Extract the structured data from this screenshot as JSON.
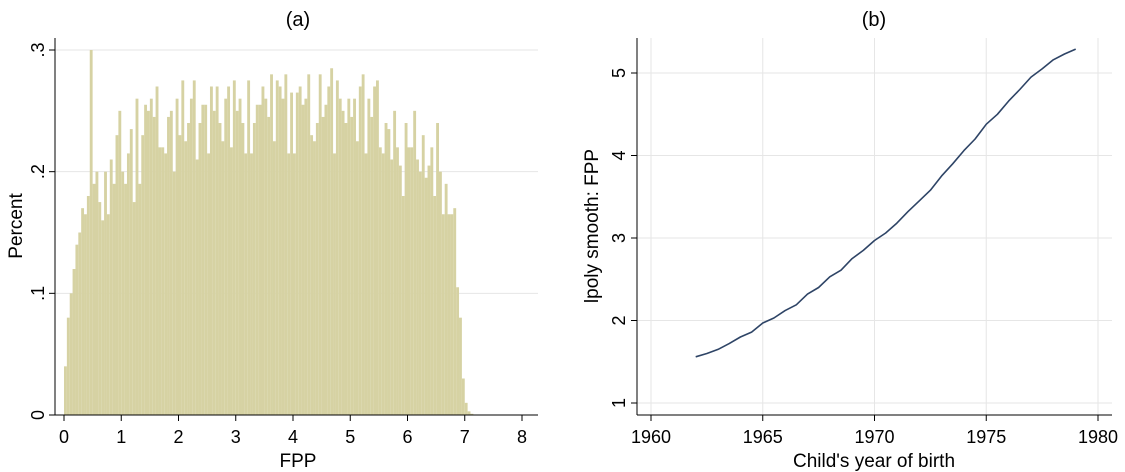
{
  "chart_data": [
    {
      "type": "bar",
      "panel_label": "(a)",
      "xlabel": "FPP",
      "ylabel": "Percent",
      "xlim": [
        0,
        8
      ],
      "ylim": [
        0,
        0.3
      ],
      "xticks": [
        0,
        1,
        2,
        3,
        4,
        5,
        6,
        7,
        8
      ],
      "xtick_labels": [
        "0",
        "1",
        "2",
        "3",
        "4",
        "5",
        "6",
        "7",
        "8"
      ],
      "yticks": [
        0,
        0.1,
        0.2,
        0.3
      ],
      "ytick_labels": [
        "0",
        ".1",
        ".2",
        ".3"
      ],
      "grid": "horizontal",
      "bar_color": "#d6d2a3",
      "bin_width": 0.05,
      "series": [
        {
          "x": [
            0.05,
            0.1,
            0.15,
            0.2,
            0.25,
            0.3,
            0.35,
            0.4,
            0.45,
            0.5,
            0.55,
            0.6,
            0.65,
            0.7,
            0.75,
            0.8,
            0.85,
            0.9,
            0.95,
            1.0,
            1.05,
            1.1,
            1.15,
            1.2,
            1.25,
            1.3,
            1.35,
            1.4,
            1.45,
            1.5,
            1.55,
            1.6,
            1.65,
            1.7,
            1.75,
            1.8,
            1.85,
            1.9,
            1.95,
            2.0,
            2.05,
            2.1,
            2.15,
            2.2,
            2.25,
            2.3,
            2.35,
            2.4,
            2.45,
            2.5,
            2.55,
            2.6,
            2.65,
            2.7,
            2.75,
            2.8,
            2.85,
            2.9,
            2.95,
            3.0,
            3.05,
            3.1,
            3.15,
            3.2,
            3.25,
            3.3,
            3.35,
            3.4,
            3.45,
            3.5,
            3.55,
            3.6,
            3.65,
            3.7,
            3.75,
            3.8,
            3.85,
            3.9,
            3.95,
            4.0,
            4.05,
            4.1,
            4.15,
            4.2,
            4.25,
            4.3,
            4.35,
            4.4,
            4.45,
            4.5,
            4.55,
            4.6,
            4.65,
            4.7,
            4.75,
            4.8,
            4.85,
            4.9,
            4.95,
            5.0,
            5.05,
            5.1,
            5.15,
            5.2,
            5.25,
            5.3,
            5.35,
            5.4,
            5.45,
            5.5,
            5.55,
            5.6,
            5.65,
            5.7,
            5.75,
            5.8,
            5.85,
            5.9,
            5.95,
            6.0,
            6.05,
            6.1,
            6.15,
            6.2,
            6.25,
            6.3,
            6.35,
            6.4,
            6.45,
            6.5,
            6.55,
            6.6,
            6.65,
            6.7,
            6.75,
            6.8,
            6.85,
            6.9,
            6.95,
            7.0,
            7.05,
            7.1,
            7.15,
            7.2
          ],
          "values": [
            0.04,
            0.08,
            0.1,
            0.12,
            0.14,
            0.15,
            0.17,
            0.165,
            0.18,
            0.3,
            0.19,
            0.2,
            0.175,
            0.16,
            0.2,
            0.165,
            0.21,
            0.19,
            0.23,
            0.25,
            0.2,
            0.19,
            0.215,
            0.235,
            0.175,
            0.26,
            0.19,
            0.23,
            0.255,
            0.25,
            0.26,
            0.245,
            0.27,
            0.22,
            0.22,
            0.215,
            0.245,
            0.25,
            0.2,
            0.26,
            0.23,
            0.275,
            0.225,
            0.24,
            0.26,
            0.275,
            0.21,
            0.24,
            0.255,
            0.255,
            0.215,
            0.27,
            0.25,
            0.27,
            0.24,
            0.225,
            0.26,
            0.27,
            0.22,
            0.275,
            0.25,
            0.26,
            0.24,
            0.215,
            0.275,
            0.215,
            0.24,
            0.255,
            0.255,
            0.27,
            0.26,
            0.245,
            0.28,
            0.225,
            0.275,
            0.27,
            0.26,
            0.28,
            0.215,
            0.265,
            0.215,
            0.265,
            0.27,
            0.255,
            0.26,
            0.28,
            0.23,
            0.225,
            0.24,
            0.28,
            0.245,
            0.255,
            0.27,
            0.285,
            0.215,
            0.275,
            0.26,
            0.25,
            0.24,
            0.26,
            0.245,
            0.26,
            0.225,
            0.27,
            0.28,
            0.215,
            0.26,
            0.245,
            0.27,
            0.275,
            0.22,
            0.215,
            0.24,
            0.235,
            0.21,
            0.25,
            0.22,
            0.205,
            0.18,
            0.24,
            0.22,
            0.22,
            0.25,
            0.21,
            0.2,
            0.23,
            0.195,
            0.205,
            0.22,
            0.18,
            0.24,
            0.2,
            0.165,
            0.19,
            0.165,
            0.165,
            0.17,
            0.105,
            0.08,
            0.03,
            0.01,
            0.003,
            0.001,
            0.0
          ]
        }
      ]
    },
    {
      "type": "line",
      "panel_label": "(b)",
      "xlabel": "Child's year of birth",
      "ylabel": "lpoly smooth: FPP",
      "xlim": [
        1959,
        1981
      ],
      "ylim": [
        0.8,
        5.45
      ],
      "xticks": [
        1960,
        1965,
        1970,
        1975,
        1980
      ],
      "xtick_labels": [
        "1960",
        "1965",
        "1970",
        "1975",
        "1980"
      ],
      "yticks": [
        1,
        2,
        3,
        4,
        5
      ],
      "ytick_labels": [
        "1",
        "2",
        "3",
        "4",
        "5"
      ],
      "grid": "both",
      "line_color": "#2e4466",
      "series": [
        {
          "x": [
            1962,
            1962.5,
            1963,
            1963.5,
            1964,
            1964.5,
            1965,
            1965.5,
            1966,
            1966.5,
            1967,
            1967.5,
            1968,
            1968.5,
            1969,
            1969.5,
            1970,
            1970.5,
            1971,
            1971.5,
            1972,
            1972.5,
            1973,
            1973.5,
            1974,
            1974.5,
            1975,
            1975.5,
            1976,
            1976.5,
            1977,
            1977.5,
            1978,
            1978.5,
            1979
          ],
          "values": [
            1.56,
            1.6,
            1.65,
            1.72,
            1.8,
            1.86,
            1.97,
            2.03,
            2.12,
            2.19,
            2.32,
            2.4,
            2.53,
            2.61,
            2.75,
            2.85,
            2.97,
            3.06,
            3.18,
            3.32,
            3.45,
            3.58,
            3.75,
            3.9,
            4.06,
            4.2,
            4.38,
            4.5,
            4.66,
            4.8,
            4.95,
            5.05,
            5.16,
            5.23,
            5.29
          ]
        }
      ]
    }
  ]
}
